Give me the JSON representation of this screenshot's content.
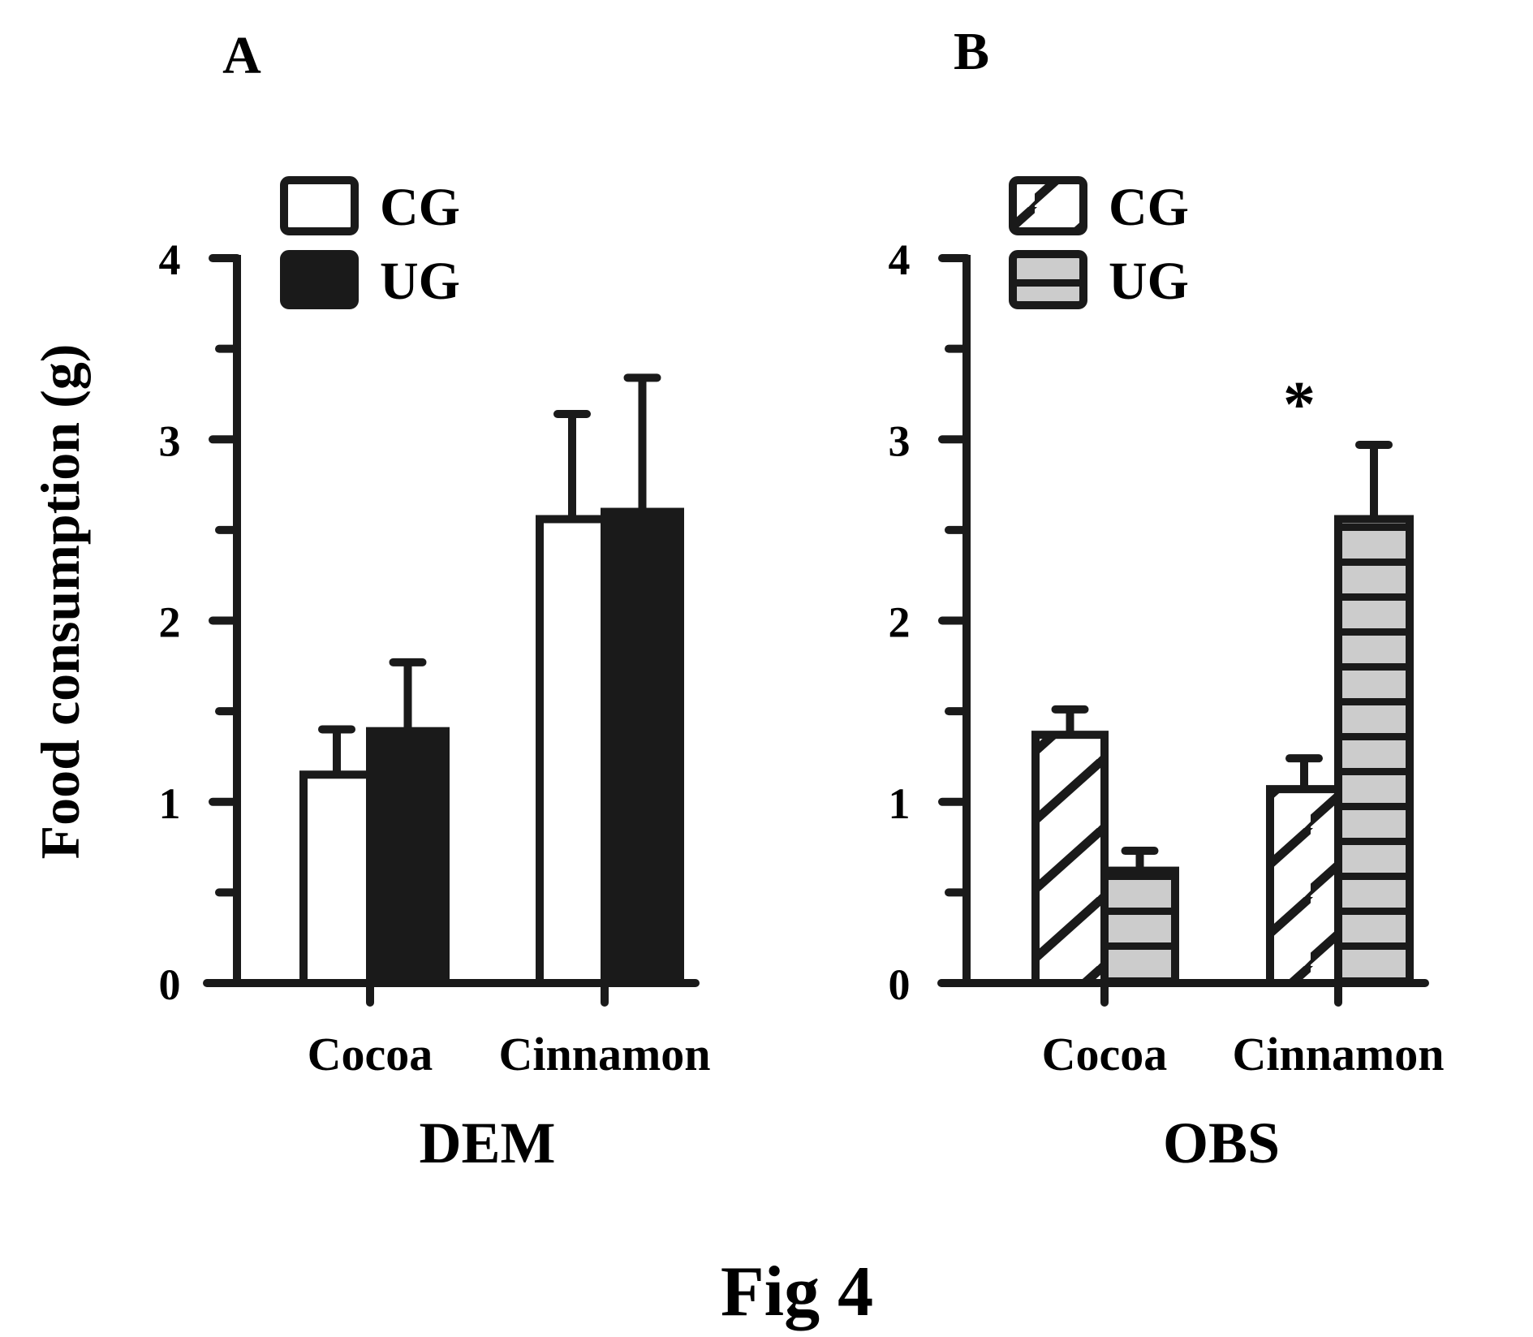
{
  "figure_caption": "Fig 4",
  "y_axis_label": "Food  consumption (g)",
  "colors": {
    "stroke": "#1a1a1a",
    "ug_a_fill": "#1a1a1a",
    "ug_b_fill": "#cccccc",
    "cg_fill": "#ffffff"
  },
  "chart_data": [
    {
      "type": "bar",
      "panel_label": "A",
      "xlabel": "DEM",
      "ylabel": "Food  consumption (g)",
      "ylim": [
        0,
        4
      ],
      "yticks": [
        "0",
        "1",
        "2",
        "3",
        "4"
      ],
      "categories": [
        "Cocoa",
        "Cinnamon"
      ],
      "legend": [
        "CG",
        "UG"
      ],
      "legend_placement": "top-left",
      "series": [
        {
          "name": "CG",
          "pattern": "white",
          "values": [
            1.15,
            2.56
          ],
          "error": [
            0.25,
            0.58
          ]
        },
        {
          "name": "UG",
          "pattern": "black",
          "values": [
            1.39,
            2.6
          ],
          "error": [
            0.38,
            0.74
          ]
        }
      ],
      "annotations": []
    },
    {
      "type": "bar",
      "panel_label": "B",
      "xlabel": "OBS",
      "ylabel": "Food  consumption (g)",
      "ylim": [
        0,
        4
      ],
      "yticks": [
        "0",
        "1",
        "2",
        "3",
        "4"
      ],
      "categories": [
        "Cocoa",
        "Cinnamon"
      ],
      "legend": [
        "CG",
        "UG"
      ],
      "legend_placement": "top-left",
      "series": [
        {
          "name": "CG",
          "pattern": "diagonal-hatch",
          "values": [
            1.37,
            1.07
          ],
          "error": [
            0.14,
            0.17
          ]
        },
        {
          "name": "UG",
          "pattern": "gray-horizontal-stripes",
          "values": [
            0.62,
            2.56
          ],
          "error": [
            0.11,
            0.41
          ]
        }
      ],
      "annotations": [
        {
          "text": "*",
          "category": "Cinnamon"
        }
      ]
    }
  ]
}
